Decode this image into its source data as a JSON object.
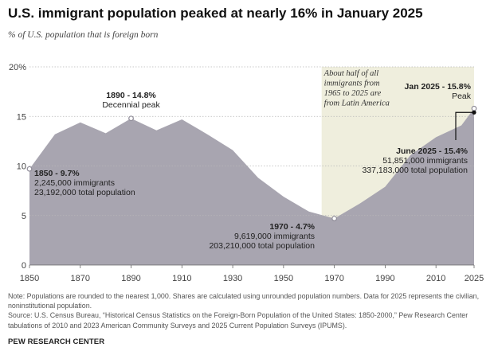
{
  "title": "U.S. immigrant population peaked at nearly 16% in January 2025",
  "subtitle": "% of U.S. population that is foreign born",
  "chart_data": {
    "type": "area",
    "title": "U.S. immigrant population peaked at nearly 16% in January 2025",
    "subtitle": "% of U.S. population that is foreign born",
    "xlabel": "",
    "ylabel": "",
    "xlim": [
      1850,
      2025
    ],
    "ylim": [
      0,
      20
    ],
    "grid": true,
    "x_ticks": [
      "1850",
      "1870",
      "1890",
      "1910",
      "1930",
      "1950",
      "1970",
      "1990",
      "2010",
      "2025"
    ],
    "y_ticks": [
      "0",
      "5",
      "10",
      "15",
      "20%"
    ],
    "series": [
      {
        "x": [
          1850,
          1860,
          1870,
          1880,
          1890,
          1900,
          1910,
          1920,
          1930,
          1940,
          1950,
          1960,
          1970,
          1980,
          1990,
          2000,
          2010,
          2020,
          2025
        ],
        "values": [
          9.7,
          13.2,
          14.4,
          13.3,
          14.8,
          13.6,
          14.7,
          13.2,
          11.6,
          8.8,
          6.9,
          5.4,
          4.7,
          6.2,
          7.9,
          11.1,
          12.9,
          14.1,
          15.8
        ]
      }
    ],
    "highlight_band": {
      "from": 1965,
      "to": 2025
    },
    "band_annotation": "About half of all immigrants from 1965 to 2025 are from Latin America",
    "annotations": [
      {
        "x": 1850,
        "y": 9.7,
        "bold": "1850 - 9.7%",
        "lines": [
          "2,245,000 immigrants",
          "23,192,000 total population"
        ]
      },
      {
        "x": 1890,
        "y": 14.8,
        "bold": "1890 - 14.8%",
        "lines": [
          "Decennial peak"
        ]
      },
      {
        "x": 1970,
        "y": 4.7,
        "bold": "1970 - 4.7%",
        "lines": [
          "9,619,000 immigrants",
          "203,210,000 total population"
        ]
      },
      {
        "x": 2025,
        "y": 15.8,
        "bold": "Jan 2025 - 15.8%",
        "lines": [
          "Peak"
        ]
      },
      {
        "x": 2025,
        "y": 15.4,
        "bold": "June 2025 - 15.4%",
        "lines": [
          "51,851,000 immigrants",
          "337,183,000 total population"
        ]
      }
    ],
    "colors": {
      "area": "#a8a5b0",
      "band": "#efeedd",
      "grid": "#b8b8b8",
      "marker": "#8f8c98"
    }
  },
  "notes": [
    "Note: Populations are rounded to the nearest 1,000. Shares are calculated using unrounded population numbers. Data for 2025 represents the civilian, noninstitutional population.",
    "Source: U.S. Census Bureau, “Historical Census Statistics on the Foreign-Born Population of the United States: 1850-2000,” Pew Research Center tabulations of 2010 and 2023 American Community Surveys and 2025 Current Population Surveys (IPUMS)."
  ],
  "brand": "PEW RESEARCH CENTER"
}
